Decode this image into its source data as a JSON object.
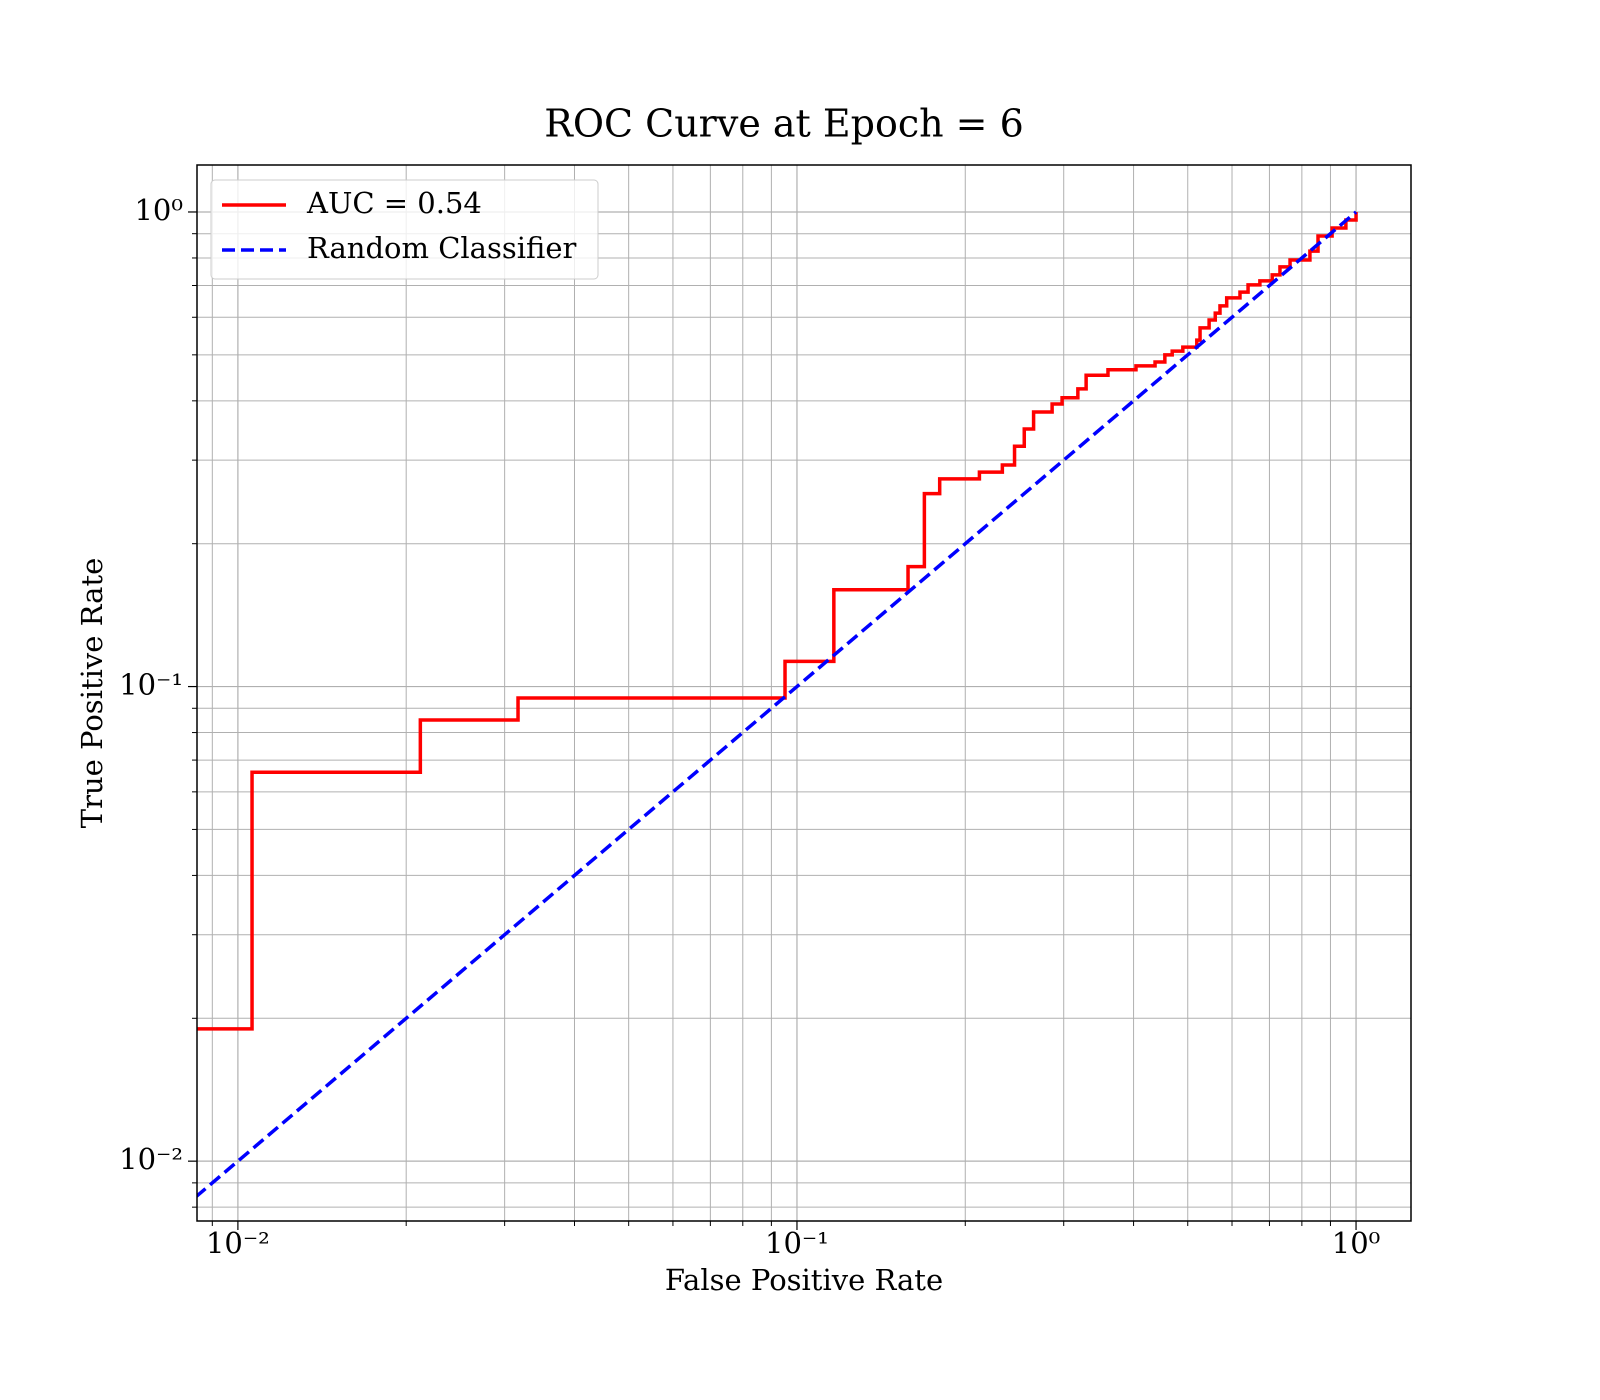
{
  "chart_data": {
    "type": "line",
    "title": "ROC Curve at Epoch = 6",
    "xlabel": "False Positive Rate",
    "ylabel": "True Positive Rate",
    "xscale": "log",
    "yscale": "log",
    "grid": true,
    "legend": "upper left",
    "xlim": [
      0.00845,
      1.254
    ],
    "ylim": [
      0.00748,
      1.256
    ],
    "xticks": [
      {
        "value": 0.01,
        "label": "10⁻²"
      },
      {
        "value": 0.1,
        "label": "10⁻¹"
      },
      {
        "value": 1,
        "label": "10⁰"
      }
    ],
    "yticks": [
      {
        "value": 0.01,
        "label": "10⁻²"
      },
      {
        "value": 0.1,
        "label": "10⁻¹"
      },
      {
        "value": 1,
        "label": "10⁰"
      }
    ],
    "xminorticks": [
      0.009,
      0.02,
      0.03,
      0.04,
      0.05,
      0.06,
      0.07,
      0.08,
      0.09,
      0.2,
      0.3,
      0.4,
      0.5,
      0.6,
      0.7,
      0.8,
      0.9
    ],
    "yminorticks": [
      0.008,
      0.009,
      0.02,
      0.03,
      0.04,
      0.05,
      0.06,
      0.07,
      0.08,
      0.09,
      0.2,
      0.3,
      0.4,
      0.5,
      0.6,
      0.7,
      0.8,
      0.9
    ],
    "series": [
      {
        "name": "AUC = 0.54",
        "color": "#ff0000",
        "linestyle": "solid",
        "x": [
          0.0084,
          0.0106,
          0.0106,
          0.0212,
          0.0212,
          0.0317,
          0.0317,
          0.0952,
          0.0952,
          0.1164,
          0.1164,
          0.158,
          0.158,
          0.169,
          0.169,
          0.18,
          0.18,
          0.212,
          0.212,
          0.233,
          0.233,
          0.245,
          0.245,
          0.255,
          0.255,
          0.265,
          0.265,
          0.286,
          0.286,
          0.298,
          0.298,
          0.318,
          0.318,
          0.329,
          0.329,
          0.36,
          0.36,
          0.404,
          0.404,
          0.437,
          0.437,
          0.455,
          0.455,
          0.469,
          0.469,
          0.49,
          0.49,
          0.519,
          0.519,
          0.526,
          0.526,
          0.546,
          0.546,
          0.56,
          0.56,
          0.571,
          0.571,
          0.587,
          0.587,
          0.62,
          0.62,
          0.641,
          0.641,
          0.673,
          0.673,
          0.708,
          0.708,
          0.731,
          0.731,
          0.762,
          0.762,
          0.827,
          0.827,
          0.855,
          0.855,
          0.906,
          0.906,
          0.959,
          0.959,
          1.0,
          1.0
        ],
        "values": [
          0.019,
          0.019,
          0.066,
          0.066,
          0.085,
          0.085,
          0.0946,
          0.0946,
          0.113,
          0.113,
          0.16,
          0.16,
          0.179,
          0.179,
          0.255,
          0.255,
          0.274,
          0.274,
          0.283,
          0.283,
          0.293,
          0.293,
          0.321,
          0.321,
          0.349,
          0.349,
          0.379,
          0.379,
          0.394,
          0.394,
          0.406,
          0.406,
          0.424,
          0.424,
          0.453,
          0.453,
          0.465,
          0.465,
          0.474,
          0.474,
          0.483,
          0.483,
          0.5,
          0.5,
          0.509,
          0.509,
          0.519,
          0.519,
          0.537,
          0.537,
          0.57,
          0.57,
          0.592,
          0.592,
          0.612,
          0.612,
          0.634,
          0.634,
          0.659,
          0.659,
          0.678,
          0.678,
          0.702,
          0.702,
          0.716,
          0.716,
          0.737,
          0.737,
          0.766,
          0.766,
          0.792,
          0.792,
          0.827,
          0.827,
          0.89,
          0.89,
          0.925,
          0.925,
          0.962,
          0.962,
          1.0
        ]
      },
      {
        "name": "Random Classifier",
        "color": "#0000ff",
        "linestyle": "dashed",
        "x": [
          0.0084,
          1.0
        ],
        "values": [
          0.0084,
          1.0
        ]
      }
    ]
  }
}
